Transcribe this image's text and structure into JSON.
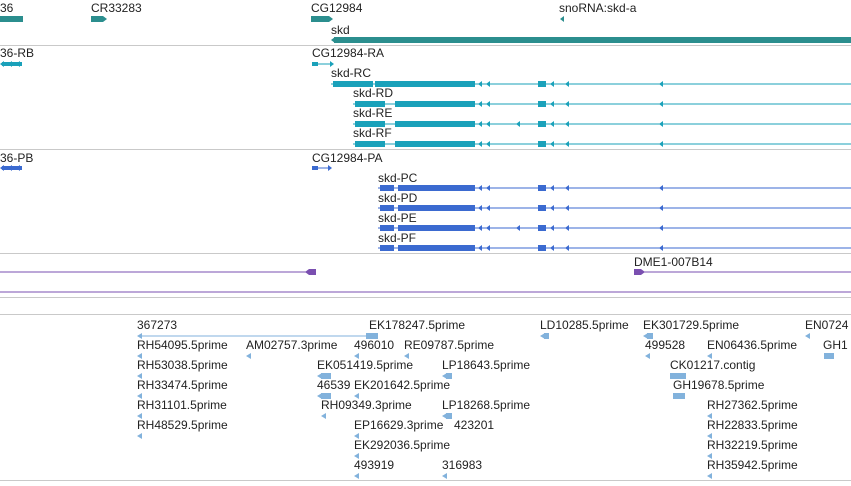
{
  "colors": {
    "gene": "#2b8e8e",
    "transcript": "#1aa1ba",
    "protein": "#3b6ad0",
    "repeat": "#7a4fb0",
    "est": "#82b2dc",
    "divider": "#c9c9c9",
    "label": "#222222"
  },
  "gene_track": {
    "labels": [
      {
        "name": "gene-label-36",
        "text": "36"
      },
      {
        "name": "gene-label-cr33283",
        "text": "CR33283"
      },
      {
        "name": "gene-label-cg12984",
        "text": "CG12984"
      },
      {
        "name": "gene-label-snorna-skd-a",
        "text": "snoRNA:skd-a"
      },
      {
        "name": "gene-label-skd",
        "text": "skd"
      }
    ]
  },
  "transcript_track": {
    "labels": [
      {
        "name": "transcript-label-36-rb",
        "text": "36-RB"
      },
      {
        "name": "transcript-label-cg12984-ra",
        "text": "CG12984-RA"
      },
      {
        "name": "transcript-label-skd-rc",
        "text": "skd-RC"
      },
      {
        "name": "transcript-label-skd-rd",
        "text": "skd-RD"
      },
      {
        "name": "transcript-label-skd-re",
        "text": "skd-RE"
      },
      {
        "name": "transcript-label-skd-rf",
        "text": "skd-RF"
      }
    ]
  },
  "protein_track": {
    "labels": [
      {
        "name": "protein-label-36-pb",
        "text": "36-PB"
      },
      {
        "name": "protein-label-cg12984-pa",
        "text": "CG12984-PA"
      },
      {
        "name": "protein-label-skd-pc",
        "text": "skd-PC"
      },
      {
        "name": "protein-label-skd-pd",
        "text": "skd-PD"
      },
      {
        "name": "protein-label-skd-pe",
        "text": "skd-PE"
      },
      {
        "name": "protein-label-skd-pf",
        "text": "skd-PF"
      }
    ]
  },
  "repeat_track": {
    "labels": [
      {
        "name": "repeat-label-dme1-007b14",
        "text": "DME1-007B14"
      }
    ]
  },
  "est_track": {
    "labels": [
      {
        "name": "est-label-367273",
        "text": "367273"
      },
      {
        "name": "est-label-ek178247",
        "text": "EK178247.5prime"
      },
      {
        "name": "est-label-ld10285",
        "text": "LD10285.5prime"
      },
      {
        "name": "est-label-ek301729",
        "text": "EK301729.5prime"
      },
      {
        "name": "est-label-en0724",
        "text": "EN0724"
      },
      {
        "name": "est-label-rh54095",
        "text": "RH54095.5prime"
      },
      {
        "name": "est-label-am02757",
        "text": "AM02757.3prime"
      },
      {
        "name": "est-label-496010",
        "text": "496010"
      },
      {
        "name": "est-label-re09787",
        "text": "RE09787.5prime"
      },
      {
        "name": "est-label-499528",
        "text": "499528"
      },
      {
        "name": "est-label-en06436",
        "text": "EN06436.5prime"
      },
      {
        "name": "est-label-gh1",
        "text": "GH1"
      },
      {
        "name": "est-label-rh53038",
        "text": "RH53038.5prime"
      },
      {
        "name": "est-label-ek051419",
        "text": "EK051419.5prime"
      },
      {
        "name": "est-label-lp18643",
        "text": "LP18643.5prime"
      },
      {
        "name": "est-label-ck01217",
        "text": "CK01217.contig"
      },
      {
        "name": "est-label-rh33474",
        "text": "RH33474.5prime"
      },
      {
        "name": "est-label-46539",
        "text": "46539"
      },
      {
        "name": "est-label-ek201642",
        "text": "EK201642.5prime"
      },
      {
        "name": "est-label-gh19678",
        "text": "GH19678.5prime"
      },
      {
        "name": "est-label-rh31101",
        "text": "RH31101.5prime"
      },
      {
        "name": "est-label-rh09349",
        "text": "RH09349.3prime"
      },
      {
        "name": "est-label-lp18268",
        "text": "LP18268.5prime"
      },
      {
        "name": "est-label-rh27362",
        "text": "RH27362.5prime"
      },
      {
        "name": "est-label-rh48529",
        "text": "RH48529.5prime"
      },
      {
        "name": "est-label-ep16629",
        "text": "EP16629.3prime"
      },
      {
        "name": "est-label-423201",
        "text": "423201"
      },
      {
        "name": "est-label-rh22833",
        "text": "RH22833.5prime"
      },
      {
        "name": "est-label-ek292036",
        "text": "EK292036.5prime"
      },
      {
        "name": "est-label-rh32219",
        "text": "RH32219.5prime"
      },
      {
        "name": "est-label-493919",
        "text": "493919"
      },
      {
        "name": "est-label-316983",
        "text": "316983"
      },
      {
        "name": "est-label-rh35942",
        "text": "RH35942.5prime"
      }
    ]
  }
}
